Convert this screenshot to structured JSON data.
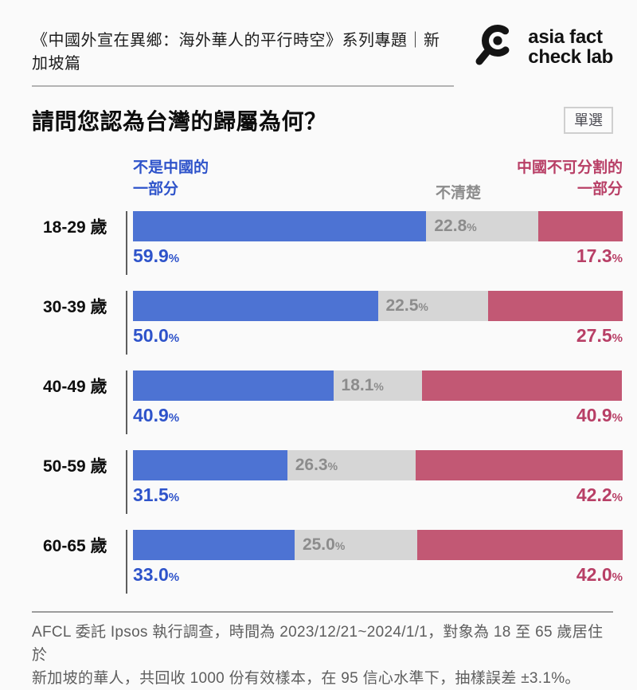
{
  "header": {
    "series_title": "《中國外宣在異鄉：海外華人的平行時空》系列專題｜新加坡篇",
    "logo_line1": "asia fact",
    "logo_line2": "check lab"
  },
  "question": {
    "title": "請問您認為台灣的歸屬為何？",
    "badge": "單選"
  },
  "legend": {
    "blue_line1": "不是中國的",
    "blue_line2": "一部分",
    "gray": "不清楚",
    "red_line1": "中國不可分割的",
    "red_line2": "一部分"
  },
  "colors": {
    "blue": "#4d73d3",
    "gray": "#d6d6d6",
    "red": "#c25874",
    "blue_text": "#2e53ca",
    "gray_text": "#8c8c8c",
    "red_text": "#b83f66"
  },
  "chart_data": {
    "type": "bar",
    "orientation": "horizontal",
    "stacked": true,
    "unit": "%",
    "title": "請問您認為台灣的歸屬為何？",
    "categories": [
      "18-29 歲",
      "30-39 歲",
      "40-49 歲",
      "50-59 歲",
      "60-65 歲"
    ],
    "series": [
      {
        "name": "不是中國的一部分",
        "color": "#4d73d3",
        "values": [
          59.9,
          50.0,
          40.9,
          31.5,
          33.0
        ]
      },
      {
        "name": "不清楚",
        "color": "#d6d6d6",
        "values": [
          22.8,
          22.5,
          18.1,
          26.3,
          25.0
        ]
      },
      {
        "name": "中國不可分割的一部分",
        "color": "#c25874",
        "values": [
          17.3,
          27.5,
          40.9,
          42.2,
          42.0
        ]
      }
    ],
    "xlim": [
      0,
      100
    ],
    "legend_position": "top",
    "grid": false
  },
  "footer": {
    "line1": "AFCL 委託 Ipsos 執行調查，時間為 2023/12/21~2024/1/1，對象為 18 至 65 歲居住於",
    "line2": "新加坡的華人，共回收 1000 份有效樣本，在 95 信心水準下，抽樣誤差 ±3.1%。"
  }
}
